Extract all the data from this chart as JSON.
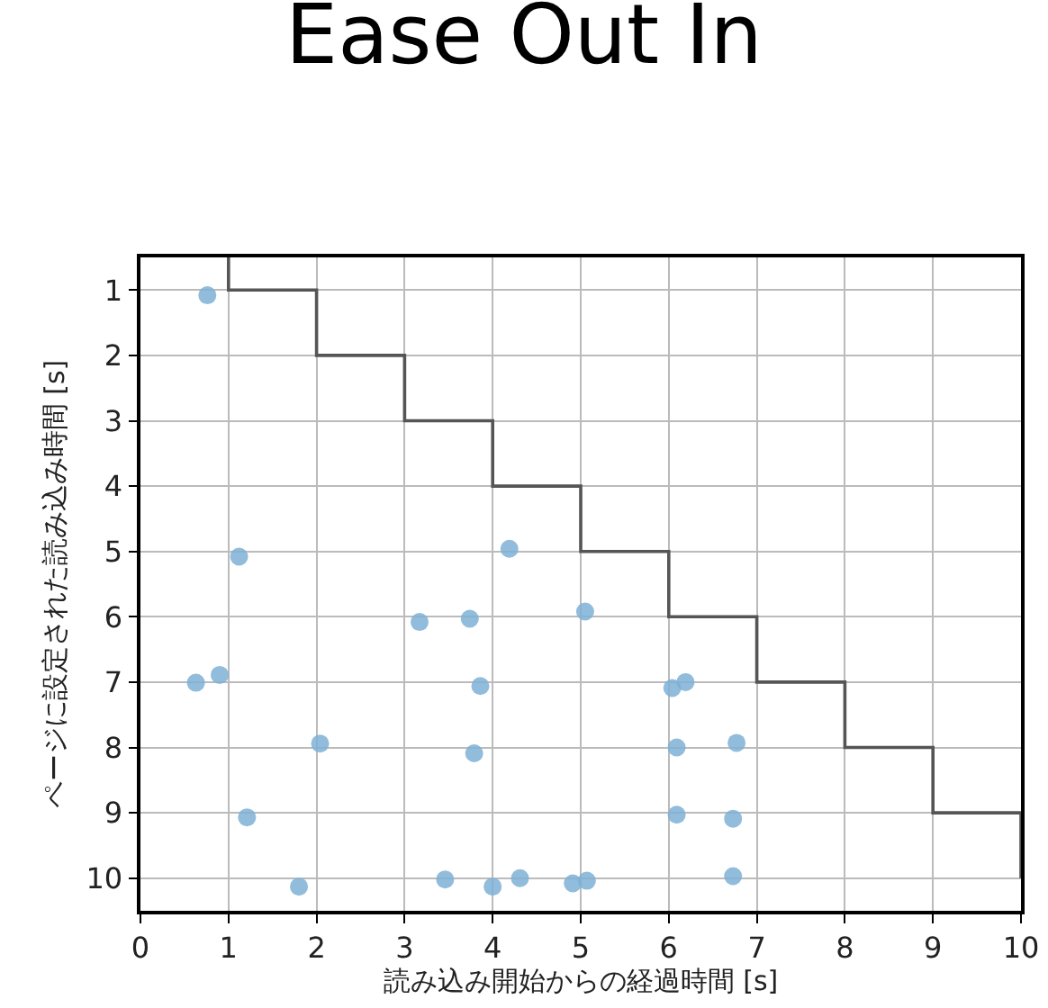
{
  "chart_data": {
    "type": "scatter",
    "title": "Ease Out In",
    "xlabel": "読み込み開始からの経過時間 [s]",
    "ylabel": "ページに設定された読み込み時間 [s]",
    "xlim": [
      0,
      10
    ],
    "xticks": [
      0,
      1,
      2,
      3,
      4,
      5,
      6,
      7,
      8,
      9,
      10
    ],
    "ylim": [
      10.5,
      0.5
    ],
    "yticks": [
      1,
      2,
      3,
      4,
      5,
      6,
      7,
      8,
      9,
      10
    ],
    "grid": true,
    "series": [
      {
        "color": "#7eb0d5",
        "marker": "circle",
        "x": [
          0.76,
          1.12,
          4.19,
          3.17,
          3.74,
          5.05,
          0.63,
          0.9,
          3.86,
          2.04,
          3.79,
          1.21,
          1.8,
          3.46,
          4.0,
          4.31,
          4.91,
          5.07,
          6.04,
          6.19,
          6.09,
          6.77,
          6.09,
          6.73,
          6.73
        ],
        "values": [
          1.08,
          5.08,
          4.96,
          6.08,
          6.03,
          5.92,
          7.01,
          6.89,
          7.06,
          7.94,
          8.09,
          9.07,
          10.13,
          10.02,
          10.13,
          10.0,
          10.08,
          10.04,
          7.09,
          7.0,
          8.0,
          7.93,
          9.03,
          9.09,
          9.97
        ]
      },
      {
        "type": "step",
        "color": "#555555",
        "line_style": "solid",
        "marker": "none",
        "x": [
          1,
          1,
          2,
          3,
          4,
          5,
          6,
          7,
          8,
          9,
          10
        ],
        "values": [
          0.5,
          1,
          2,
          3,
          4,
          5,
          6,
          7,
          8,
          9,
          10
        ]
      }
    ]
  }
}
